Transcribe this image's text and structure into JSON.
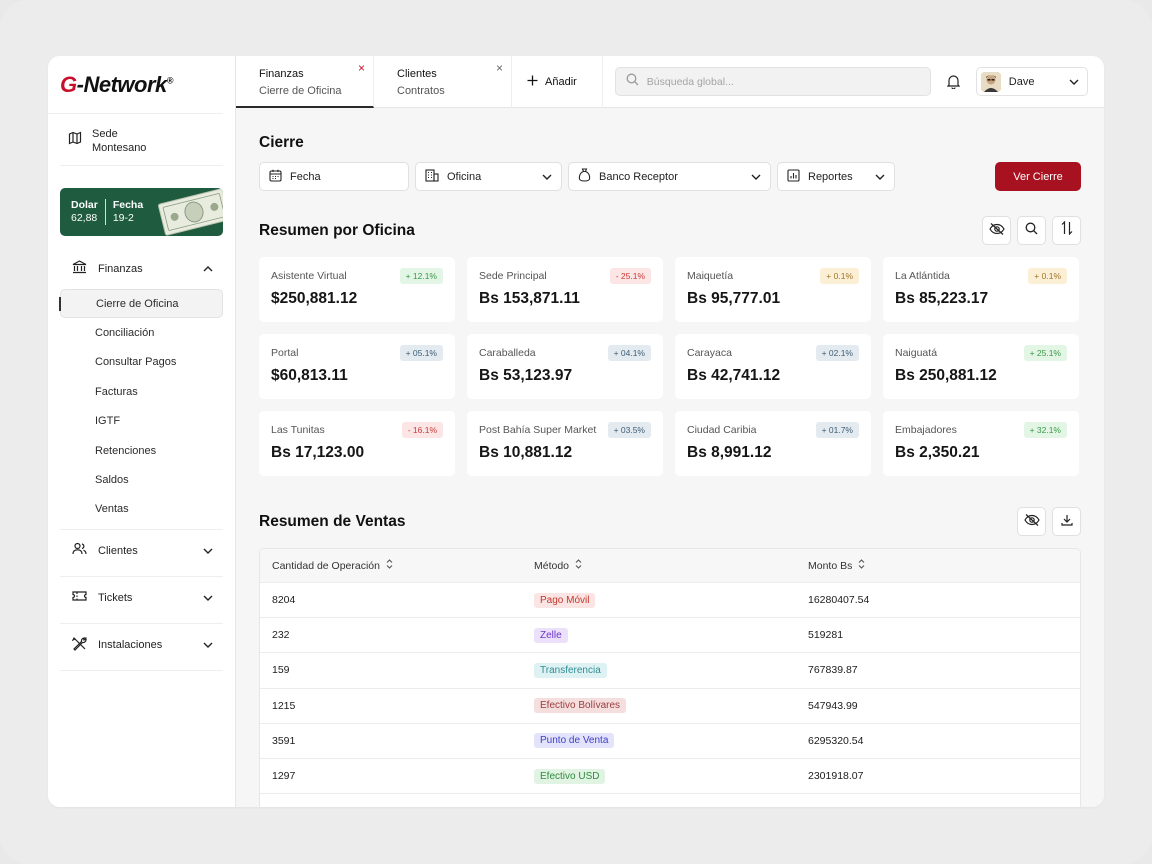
{
  "brand": {
    "logo_g": "G",
    "logo_rest": "-Network",
    "logo_reg": "®",
    "accent": "#c8102e"
  },
  "sede": {
    "line1": "Sede",
    "line2": "Montesano"
  },
  "rate": {
    "label1": "Dolar",
    "value1": "62,88",
    "label2": "Fecha",
    "value2": "19-2"
  },
  "nav": {
    "finanzas": "Finanzas",
    "sub": [
      "Cierre de Oficina",
      "Conciliación",
      "Consultar Pagos",
      "Facturas",
      "IGTF",
      "Retenciones",
      "Saldos",
      "Ventas"
    ],
    "clientes": "Clientes",
    "tickets": "Tickets",
    "instalaciones": "Instalaciones"
  },
  "tabs": [
    {
      "title": "Finanzas",
      "subtitle": "Cierre de Oficina",
      "close": "×"
    },
    {
      "title": "Clientes",
      "subtitle": "Contratos",
      "close": "×"
    }
  ],
  "topbar": {
    "add_label": "Añadir",
    "search_placeholder": "Búsqueda global...",
    "user_name": "Dave"
  },
  "cierre": {
    "title": "Cierre",
    "filters": {
      "fecha": "Fecha",
      "oficina": "Oficina",
      "banco": "Banco Receptor",
      "reportes": "Reportes"
    },
    "cta": "Ver Cierre"
  },
  "resumen_oficina": {
    "title": "Resumen por Oficina",
    "cards": [
      {
        "name": "Asistente Virtual",
        "value": "$250,881.12",
        "change": "+ 12.1%",
        "tone": "up"
      },
      {
        "name": "Sede Principal",
        "value": "Bs 153,871.11",
        "change": "- 25.1%",
        "tone": "down"
      },
      {
        "name": "Maiquetía",
        "value": "Bs 95,777.01",
        "change": "+ 0.1%",
        "tone": "flat"
      },
      {
        "name": "La Atlántida",
        "value": "Bs 85,223.17",
        "change": "+ 0.1%",
        "tone": "flat"
      },
      {
        "name": "Portal",
        "value": "$60,813.11",
        "change": "+ 05.1%",
        "tone": "blue"
      },
      {
        "name": "Caraballeda",
        "value": "Bs 53,123.97",
        "change": "+ 04.1%",
        "tone": "blue"
      },
      {
        "name": "Carayaca",
        "value": "Bs 42,741.12",
        "change": "+ 02.1%",
        "tone": "blue"
      },
      {
        "name": "Naiguatá",
        "value": "Bs 250,881.12",
        "change": "+ 25.1%",
        "tone": "up"
      },
      {
        "name": "Las Tunitas",
        "value": "Bs 17,123.00",
        "change": "- 16.1%",
        "tone": "down"
      },
      {
        "name": "Post Bahía Super Market",
        "value": "Bs 10,881.12",
        "change": "+ 03.5%",
        "tone": "blue"
      },
      {
        "name": "Ciudad Caribia",
        "value": "Bs 8,991.12",
        "change": "+ 01.7%",
        "tone": "blue"
      },
      {
        "name": "Embajadores",
        "value": "Bs 2,350.21",
        "change": "+ 32.1%",
        "tone": "up"
      }
    ]
  },
  "resumen_ventas": {
    "title": "Resumen de Ventas",
    "columns": [
      "Cantidad de Operación",
      "Método",
      "Monto Bs"
    ],
    "rows": [
      {
        "qty": "8204",
        "method": "Pago Móvil",
        "amount": "16280407.54",
        "bg": "#fbe4e4",
        "fg": "#c0392b"
      },
      {
        "qty": "232",
        "method": "Zelle",
        "amount": "519281",
        "bg": "#ece1fb",
        "fg": "#6b35c9"
      },
      {
        "qty": "159",
        "method": "Transferencia",
        "amount": "767839.87",
        "bg": "#dff2f3",
        "fg": "#2f8d95"
      },
      {
        "qty": "1215",
        "method": "Efectivo Bolívares",
        "amount": "547943.99",
        "bg": "#f5dede",
        "fg": "#9a3d3d"
      },
      {
        "qty": "3591",
        "method": "Punto de Venta",
        "amount": "6295320.54",
        "bg": "#e3e3fb",
        "fg": "#3e3fc4"
      },
      {
        "qty": "1297",
        "method": "Efectivo USD",
        "amount": "2301918.07",
        "bg": "#e1f3e3",
        "fg": "#2f8a3d"
      }
    ]
  }
}
